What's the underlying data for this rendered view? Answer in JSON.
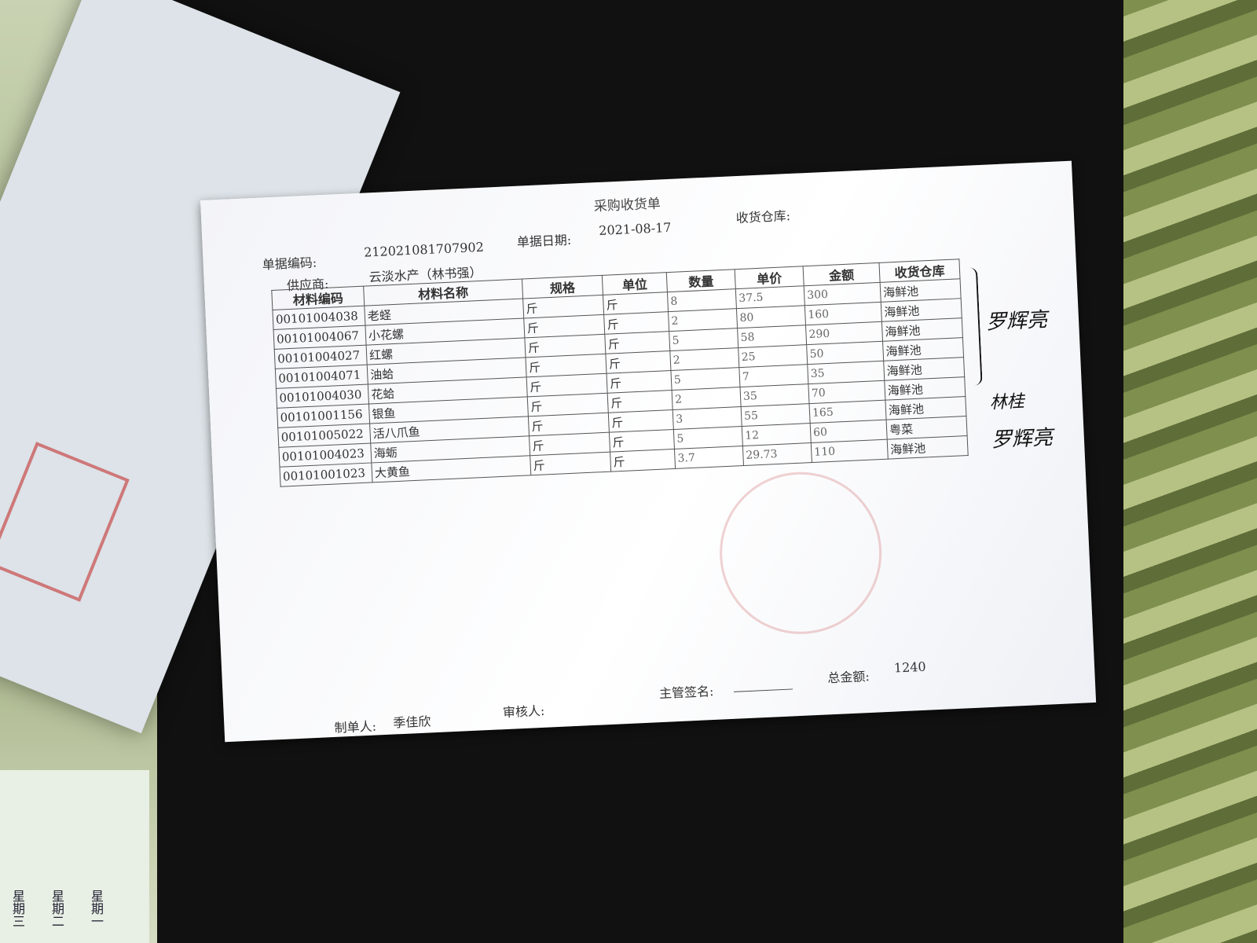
{
  "document": {
    "title": "采购收货单",
    "doc_no_label": "单据编码:",
    "doc_no": "212021081707902",
    "date_label": "单据日期:",
    "date": "2021-08-17",
    "warehouse_label": "收货仓库:",
    "supplier_label": "供应商:",
    "supplier": "云淡水产（林书强）",
    "columns": [
      "材料编码",
      "材料名称",
      "规格",
      "单位",
      "数量",
      "单价",
      "金额",
      "收货仓库"
    ],
    "rows": [
      {
        "code": "00101004038",
        "name": "老蛏",
        "spec": "斤",
        "unit": "斤",
        "qty": "8",
        "price": "37.5",
        "amount": "300",
        "warehouse": "海鲜池"
      },
      {
        "code": "00101004067",
        "name": "小花螺",
        "spec": "斤",
        "unit": "斤",
        "qty": "2",
        "price": "80",
        "amount": "160",
        "warehouse": "海鲜池"
      },
      {
        "code": "00101004027",
        "name": "红螺",
        "spec": "斤",
        "unit": "斤",
        "qty": "5",
        "price": "58",
        "amount": "290",
        "warehouse": "海鲜池"
      },
      {
        "code": "00101004071",
        "name": "油蛤",
        "spec": "斤",
        "unit": "斤",
        "qty": "2",
        "price": "25",
        "amount": "50",
        "warehouse": "海鲜池"
      },
      {
        "code": "00101004030",
        "name": "花蛤",
        "spec": "斤",
        "unit": "斤",
        "qty": "5",
        "price": "7",
        "amount": "35",
        "warehouse": "海鲜池"
      },
      {
        "code": "00101001156",
        "name": "银鱼",
        "spec": "斤",
        "unit": "斤",
        "qty": "2",
        "price": "35",
        "amount": "70",
        "warehouse": "海鲜池"
      },
      {
        "code": "00101005022",
        "name": "活八爪鱼",
        "spec": "斤",
        "unit": "斤",
        "qty": "3",
        "price": "55",
        "amount": "165",
        "warehouse": "海鲜池"
      },
      {
        "code": "00101004023",
        "name": "海蛎",
        "spec": "斤",
        "unit": "斤",
        "qty": "5",
        "price": "12",
        "amount": "60",
        "warehouse": "粤菜"
      },
      {
        "code": "00101001023",
        "name": "大黄鱼",
        "spec": "斤",
        "unit": "斤",
        "qty": "3.7",
        "price": "29.73",
        "amount": "110",
        "warehouse": "海鲜池"
      }
    ],
    "maker_label": "制单人:",
    "maker": "季佳欣",
    "reviewer_label": "审核人:",
    "supervisor_label": "主管签名:",
    "total_label": "总金额:",
    "total": "1240",
    "handwritten_signatures": [
      "罗辉亮",
      "林桂",
      "罗辉亮"
    ]
  },
  "background": {
    "calendar_labels": [
      "星期三",
      "星期二",
      "星期一"
    ]
  }
}
